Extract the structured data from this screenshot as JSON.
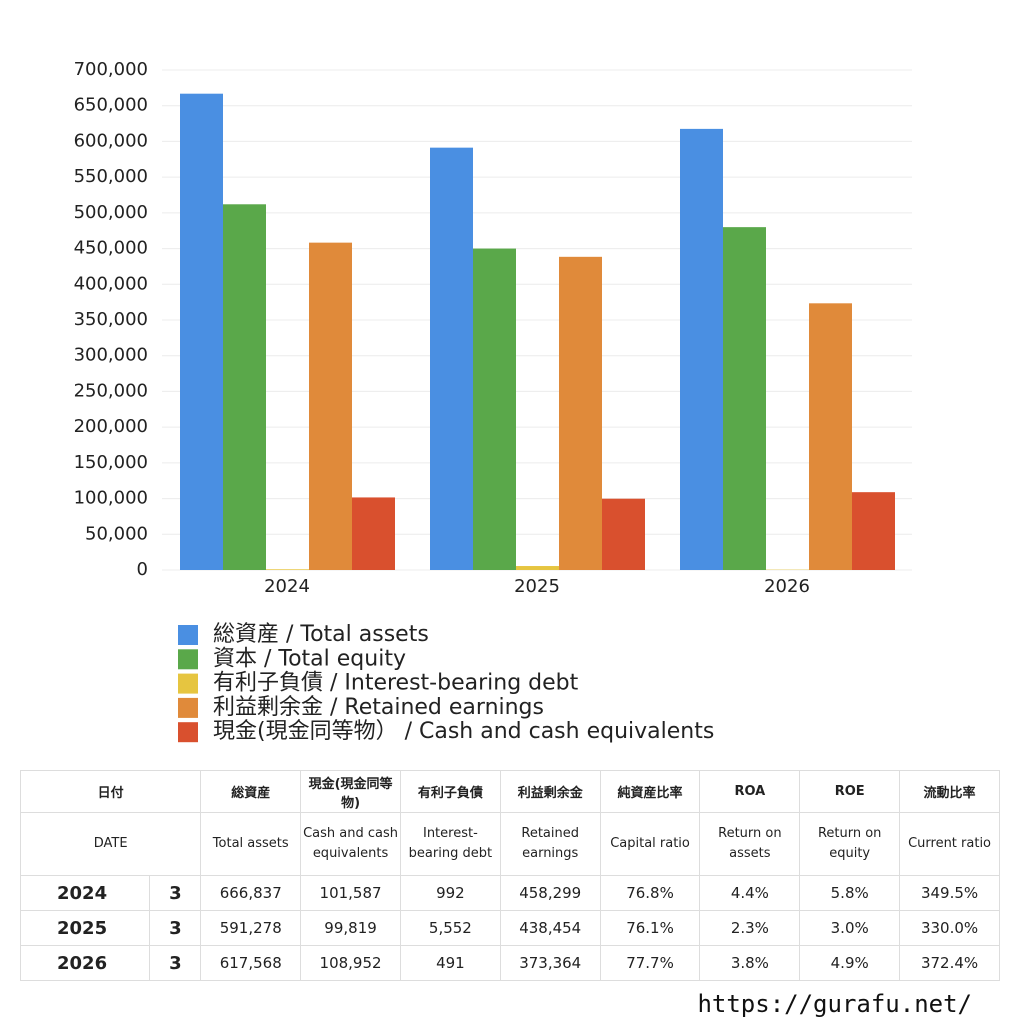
{
  "chart_data": {
    "type": "bar",
    "categories": [
      "2024",
      "2025",
      "2026"
    ],
    "series": [
      {
        "name": "総資産 / Total assets",
        "color": "#4a8fe2",
        "values": [
          666837,
          591278,
          617568
        ]
      },
      {
        "name": "資本 / Total equity",
        "color": "#5aa84a",
        "values": [
          512000,
          450000,
          480000
        ]
      },
      {
        "name": "有利子負債 / Interest-bearing debt",
        "color": "#e6c540",
        "values": [
          992,
          5552,
          491
        ]
      },
      {
        "name": "利益剰余金 / Retained earnings",
        "color": "#e08a3a",
        "values": [
          458299,
          438454,
          373364
        ]
      },
      {
        "name": "現金(現金同等物）  /  Cash and cash equivalents",
        "color": "#d9502e",
        "values": [
          101587,
          99819,
          108952
        ]
      }
    ],
    "ylim": [
      0,
      700000
    ],
    "yticks": [
      0,
      {
        "value": 50000,
        "label": "50,000"
      },
      {
        "value": 100000,
        "label": "100,000"
      },
      {
        "value": 150000,
        "label": "150,000"
      },
      {
        "value": 200000,
        "label": "200,000"
      },
      {
        "value": 250000,
        "label": "250,000"
      },
      {
        "value": 300000,
        "label": "300,000"
      },
      {
        "value": 350000,
        "label": "350,000"
      },
      {
        "value": 400000,
        "label": "400,000"
      },
      {
        "value": 450000,
        "label": "450,000"
      },
      {
        "value": 500000,
        "label": "500,000"
      },
      {
        "value": 550000,
        "label": "550,000"
      },
      {
        "value": 600000,
        "label": "600,000"
      },
      {
        "value": 650000,
        "label": "650,000"
      },
      {
        "value": 700000,
        "label": "700,000"
      }
    ],
    "grid": true,
    "legend": "bottom"
  },
  "table": {
    "header": [
      "日付",
      "総資産",
      "現金(現金同等物)",
      "有利子負債",
      "利益剰余金",
      "純資産比率",
      "ROA",
      "ROE",
      "流動比率"
    ],
    "subheader": [
      "DATE",
      "Total assets",
      "Cash and cash equivalents",
      "Interest-bearing debt",
      "Retained earnings",
      "Capital ratio",
      "Return on assets",
      "Return on equity",
      "Current ratio"
    ],
    "rows": [
      [
        "2024",
        "3",
        "666,837",
        "101,587",
        "992",
        "458,299",
        "76.8%",
        "4.4%",
        "5.8%",
        "349.5%"
      ],
      [
        "2025",
        "3",
        "591,278",
        "99,819",
        "5,552",
        "438,454",
        "76.1%",
        "2.3%",
        "3.0%",
        "330.0%"
      ],
      [
        "2026",
        "3",
        "617,568",
        "108,952",
        "491",
        "373,364",
        "77.7%",
        "3.8%",
        "4.9%",
        "372.4%"
      ]
    ]
  },
  "footer": "https://gurafu.net/"
}
